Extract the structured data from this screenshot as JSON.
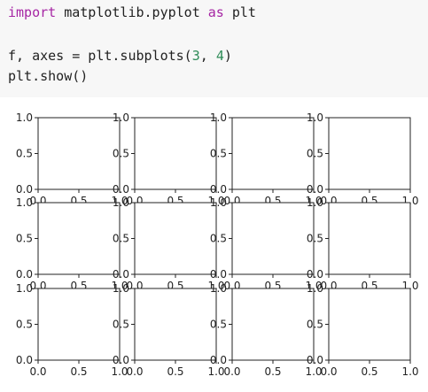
{
  "code": {
    "lines": [
      [
        {
          "text": "import",
          "color": "#a626a4"
        },
        {
          "text": " matplotlib.pyplot ",
          "color": "#222222"
        },
        {
          "text": "as",
          "color": "#a626a4"
        },
        {
          "text": " plt",
          "color": "#222222"
        }
      ],
      [],
      [
        {
          "text": "f, axes = plt.subplots(",
          "color": "#222222"
        },
        {
          "text": "3",
          "color": "#2e8b57"
        },
        {
          "text": ", ",
          "color": "#222222"
        },
        {
          "text": "4",
          "color": "#2e8b57"
        },
        {
          "text": ")",
          "color": "#222222"
        }
      ],
      [
        {
          "text": "plt.show()",
          "color": "#222222"
        }
      ]
    ]
  },
  "chart_data": [
    {
      "type": "line",
      "xlim": [
        0,
        1
      ],
      "ylim": [
        0,
        1
      ],
      "xticks": [
        {
          "value": 0,
          "label": "0.0"
        },
        0.5,
        {
          "value": 1,
          "label": "1.0"
        }
      ],
      "yticks": [
        {
          "value": 0,
          "label": "0.0"
        },
        0.5,
        {
          "value": 1,
          "label": "1.0"
        }
      ]
    },
    {
      "type": "line",
      "xlim": [
        0,
        1
      ],
      "ylim": [
        0,
        1
      ],
      "xticks": [
        {
          "value": 0,
          "label": "0.0"
        },
        0.5,
        {
          "value": 1,
          "label": "1.0"
        }
      ],
      "yticks": [
        {
          "value": 0,
          "label": "0.0"
        },
        0.5,
        {
          "value": 1,
          "label": "1.0"
        }
      ]
    },
    {
      "type": "line",
      "xlim": [
        0,
        1
      ],
      "ylim": [
        0,
        1
      ],
      "xticks": [
        {
          "value": 0,
          "label": "0.0"
        },
        0.5,
        {
          "value": 1,
          "label": "1.0"
        }
      ],
      "yticks": [
        {
          "value": 0,
          "label": "0.0"
        },
        0.5,
        {
          "value": 1,
          "label": "1.0"
        }
      ]
    },
    {
      "type": "line",
      "xlim": [
        0,
        1
      ],
      "ylim": [
        0,
        1
      ],
      "xticks": [
        {
          "value": 0,
          "label": "0.0"
        },
        0.5,
        {
          "value": 1,
          "label": "1.0"
        }
      ],
      "yticks": [
        {
          "value": 0,
          "label": "0.0"
        },
        0.5,
        {
          "value": 1,
          "label": "1.0"
        }
      ]
    },
    {
      "type": "line",
      "xlim": [
        0,
        1
      ],
      "ylim": [
        0,
        1
      ],
      "xticks": [
        {
          "value": 0,
          "label": "0.0"
        },
        0.5,
        {
          "value": 1,
          "label": "1.0"
        }
      ],
      "yticks": [
        {
          "value": 0,
          "label": "0.0"
        },
        0.5,
        {
          "value": 1,
          "label": "1.0"
        }
      ]
    },
    {
      "type": "line",
      "xlim": [
        0,
        1
      ],
      "ylim": [
        0,
        1
      ],
      "xticks": [
        {
          "value": 0,
          "label": "0.0"
        },
        0.5,
        {
          "value": 1,
          "label": "1.0"
        }
      ],
      "yticks": [
        {
          "value": 0,
          "label": "0.0"
        },
        0.5,
        {
          "value": 1,
          "label": "1.0"
        }
      ]
    },
    {
      "type": "line",
      "xlim": [
        0,
        1
      ],
      "ylim": [
        0,
        1
      ],
      "xticks": [
        {
          "value": 0,
          "label": "0.0"
        },
        0.5,
        {
          "value": 1,
          "label": "1.0"
        }
      ],
      "yticks": [
        {
          "value": 0,
          "label": "0.0"
        },
        0.5,
        {
          "value": 1,
          "label": "1.0"
        }
      ]
    },
    {
      "type": "line",
      "xlim": [
        0,
        1
      ],
      "ylim": [
        0,
        1
      ],
      "xticks": [
        {
          "value": 0,
          "label": "0.0"
        },
        0.5,
        {
          "value": 1,
          "label": "1.0"
        }
      ],
      "yticks": [
        {
          "value": 0,
          "label": "0.0"
        },
        0.5,
        {
          "value": 1,
          "label": "1.0"
        }
      ]
    },
    {
      "type": "line",
      "xlim": [
        0,
        1
      ],
      "ylim": [
        0,
        1
      ],
      "xticks": [
        {
          "value": 0,
          "label": "0.0"
        },
        0.5,
        {
          "value": 1,
          "label": "1.0"
        }
      ],
      "yticks": [
        {
          "value": 0,
          "label": "0.0"
        },
        0.5,
        {
          "value": 1,
          "label": "1.0"
        }
      ]
    },
    {
      "type": "line",
      "xlim": [
        0,
        1
      ],
      "ylim": [
        0,
        1
      ],
      "xticks": [
        {
          "value": 0,
          "label": "0.0"
        },
        0.5,
        {
          "value": 1,
          "label": "1.0"
        }
      ],
      "yticks": [
        {
          "value": 0,
          "label": "0.0"
        },
        0.5,
        {
          "value": 1,
          "label": "1.0"
        }
      ]
    },
    {
      "type": "line",
      "xlim": [
        0,
        1
      ],
      "ylim": [
        0,
        1
      ],
      "xticks": [
        {
          "value": 0,
          "label": "0.0"
        },
        0.5,
        {
          "value": 1,
          "label": "1.0"
        }
      ],
      "yticks": [
        {
          "value": 0,
          "label": "0.0"
        },
        0.5,
        {
          "value": 1,
          "label": "1.0"
        }
      ]
    },
    {
      "type": "line",
      "xlim": [
        0,
        1
      ],
      "ylim": [
        0,
        1
      ],
      "xticks": [
        {
          "value": 0,
          "label": "0.0"
        },
        0.5,
        {
          "value": 1,
          "label": "1.0"
        }
      ],
      "yticks": [
        {
          "value": 0,
          "label": "0.0"
        },
        0.5,
        {
          "value": 1,
          "label": "1.0"
        }
      ]
    }
  ]
}
